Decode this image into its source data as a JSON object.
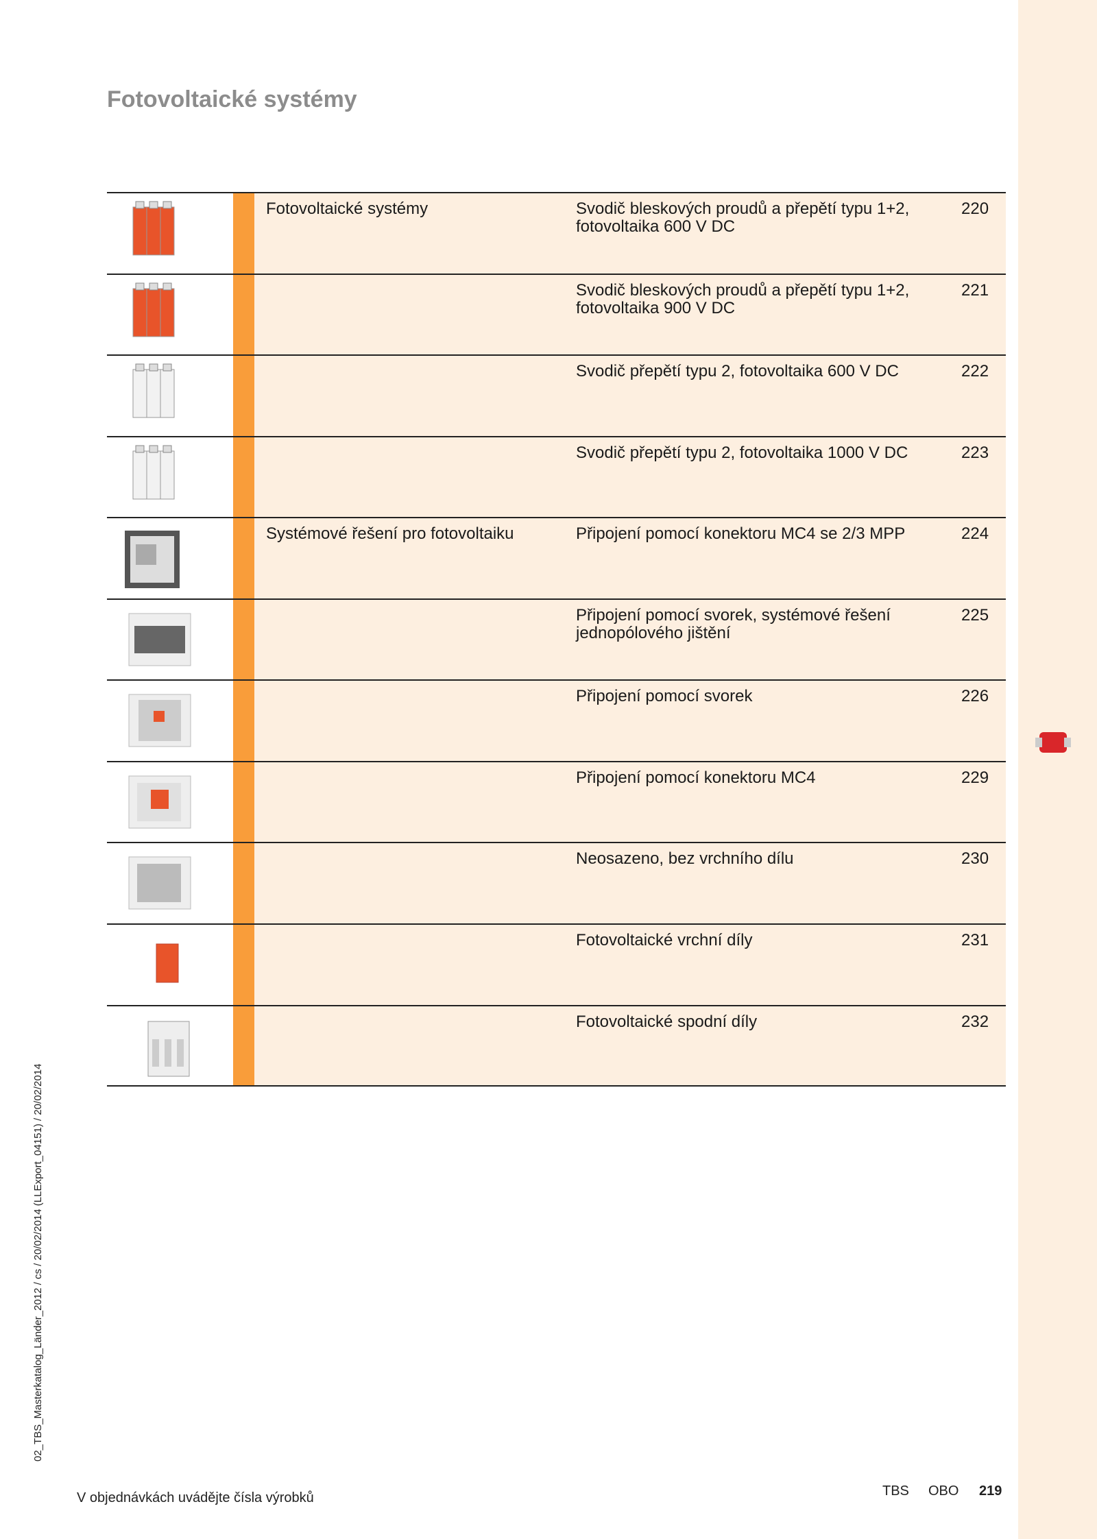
{
  "header": {
    "title": "Fotovoltaické systémy"
  },
  "table": {
    "rows": [
      {
        "group": "Fotovoltaické systémy",
        "desc": [
          "Svodič bleskových proudů a přepětí typu 1+2,",
          "fotovoltaika 600 V DC"
        ],
        "page": "220"
      },
      {
        "desc": [
          "Svodič bleskových proudů a přepětí typu 1+2,",
          "fotovoltaika 900 V DC"
        ],
        "page": "221"
      },
      {
        "desc": [
          "Svodič přepětí typu 2, fotovoltaika 600 V DC"
        ],
        "page": "222"
      },
      {
        "desc": [
          "Svodič přepětí typu 2, fotovoltaika 1000 V DC"
        ],
        "page": "223"
      },
      {
        "group": "Systémové řešení pro fotovoltaiku",
        "desc": [
          "Připojení pomocí konektoru MC4 se 2/3 MPP"
        ],
        "page": "224"
      },
      {
        "desc": [
          "Připojení pomocí svorek, systémové řešení",
          "jednopólového jištění"
        ],
        "page": "225"
      },
      {
        "desc": [
          "Připojení pomocí svorek"
        ],
        "page": "226"
      },
      {
        "desc": [
          "Připojení pomocí konektoru MC4"
        ],
        "page": "229"
      },
      {
        "desc": [
          "Neosazeno, bez vrchního dílu"
        ],
        "page": "230"
      },
      {
        "desc": [
          "Fotovoltaické vrchní díly"
        ],
        "page": "231"
      },
      {
        "desc": [
          "Fotovoltaické spodní díly"
        ],
        "page": "232"
      }
    ]
  },
  "side_note": "02_TBS_Masterkatalog_Länder_2012 / cs / 20/02/2014 (LLExport_04151) / 20/02/2014",
  "footer": {
    "note": "V objednávkách uvádějte čísla výrobků",
    "brand1": "TBS",
    "brand2": "OBO",
    "page_number": "219"
  }
}
